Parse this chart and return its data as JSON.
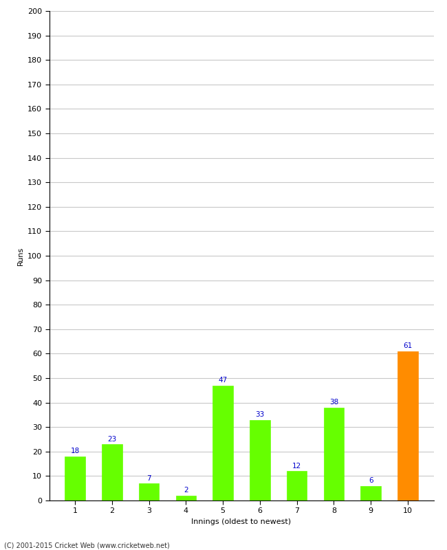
{
  "categories": [
    "1",
    "2",
    "3",
    "4",
    "5",
    "6",
    "7",
    "8",
    "9",
    "10"
  ],
  "values": [
    18,
    23,
    7,
    2,
    47,
    33,
    12,
    38,
    6,
    61
  ],
  "bar_colors": [
    "#66ff00",
    "#66ff00",
    "#66ff00",
    "#66ff00",
    "#66ff00",
    "#66ff00",
    "#66ff00",
    "#66ff00",
    "#66ff00",
    "#ff8c00"
  ],
  "xlabel": "Innings (oldest to newest)",
  "ylabel": "Runs",
  "ylim": [
    0,
    200
  ],
  "yticks": [
    0,
    10,
    20,
    30,
    40,
    50,
    60,
    70,
    80,
    90,
    100,
    110,
    120,
    130,
    140,
    150,
    160,
    170,
    180,
    190,
    200
  ],
  "label_color": "#0000cc",
  "label_fontsize": 7.5,
  "footer_text": "(C) 2001-2015 Cricket Web (www.cricketweb.net)",
  "background_color": "#ffffff",
  "grid_color": "#c8c8c8",
  "axis_color": "#000000",
  "tick_label_fontsize": 8,
  "xlabel_fontsize": 8,
  "ylabel_fontsize": 8
}
